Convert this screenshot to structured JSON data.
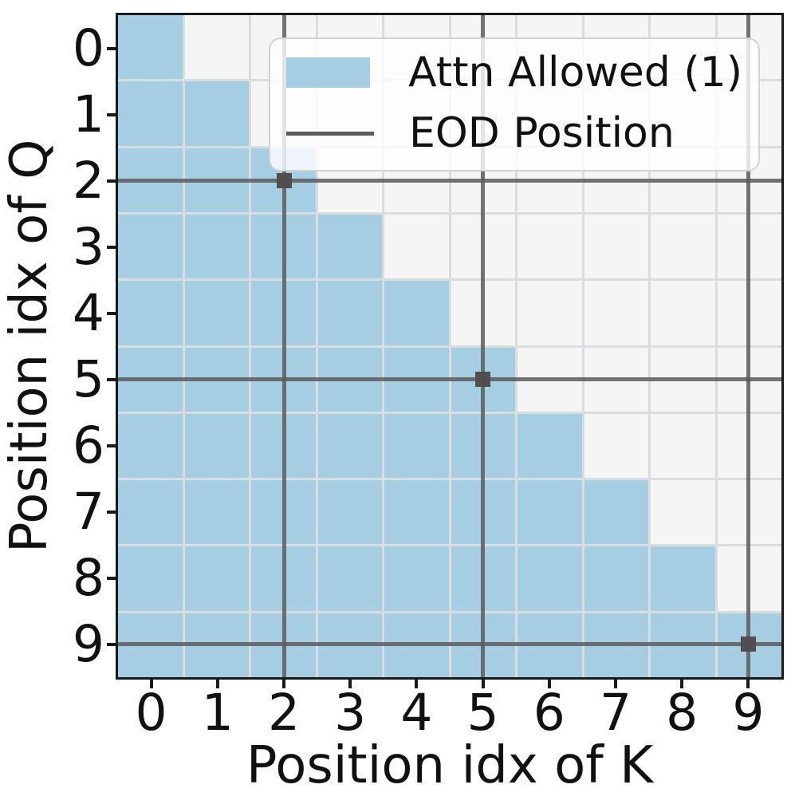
{
  "figure": {
    "xlabel": "Position idx of K",
    "ylabel": "Position idx of Q"
  },
  "chart_data": {
    "type": "heatmap",
    "title": "",
    "xlabel": "Position idx of K",
    "ylabel": "Position idx of Q",
    "x_ticks": [
      "0",
      "1",
      "2",
      "3",
      "4",
      "5",
      "6",
      "7",
      "8",
      "9"
    ],
    "y_ticks": [
      "0",
      "1",
      "2",
      "3",
      "4",
      "5",
      "6",
      "7",
      "8",
      "9"
    ],
    "mask": [
      [
        1,
        0,
        0,
        0,
        0,
        0,
        0,
        0,
        0,
        0
      ],
      [
        1,
        1,
        0,
        0,
        0,
        0,
        0,
        0,
        0,
        0
      ],
      [
        1,
        1,
        1,
        0,
        0,
        0,
        0,
        0,
        0,
        0
      ],
      [
        1,
        1,
        1,
        1,
        0,
        0,
        0,
        0,
        0,
        0
      ],
      [
        1,
        1,
        1,
        1,
        1,
        0,
        0,
        0,
        0,
        0
      ],
      [
        1,
        1,
        1,
        1,
        1,
        1,
        0,
        0,
        0,
        0
      ],
      [
        1,
        1,
        1,
        1,
        1,
        1,
        1,
        0,
        0,
        0
      ],
      [
        1,
        1,
        1,
        1,
        1,
        1,
        1,
        1,
        0,
        0
      ],
      [
        1,
        1,
        1,
        1,
        1,
        1,
        1,
        1,
        1,
        0
      ],
      [
        1,
        1,
        1,
        1,
        1,
        1,
        1,
        1,
        1,
        1
      ]
    ],
    "eod_positions": [
      2,
      5,
      9
    ],
    "legend_items": [
      {
        "label": "Attn Allowed (1)",
        "swatch": "patch"
      },
      {
        "label": "EOD Position",
        "swatch": "line"
      }
    ],
    "colors": {
      "allowed": "#a6cee3",
      "masked": "#f5f5f5",
      "grid_line": "#d9dde0",
      "eod_line": "#5a5a5a",
      "eod_marker": "#4f4f4f",
      "spine": "#1a1a1a"
    },
    "layout": {
      "grid": "on",
      "legend_position": "upper right inside axes"
    }
  }
}
